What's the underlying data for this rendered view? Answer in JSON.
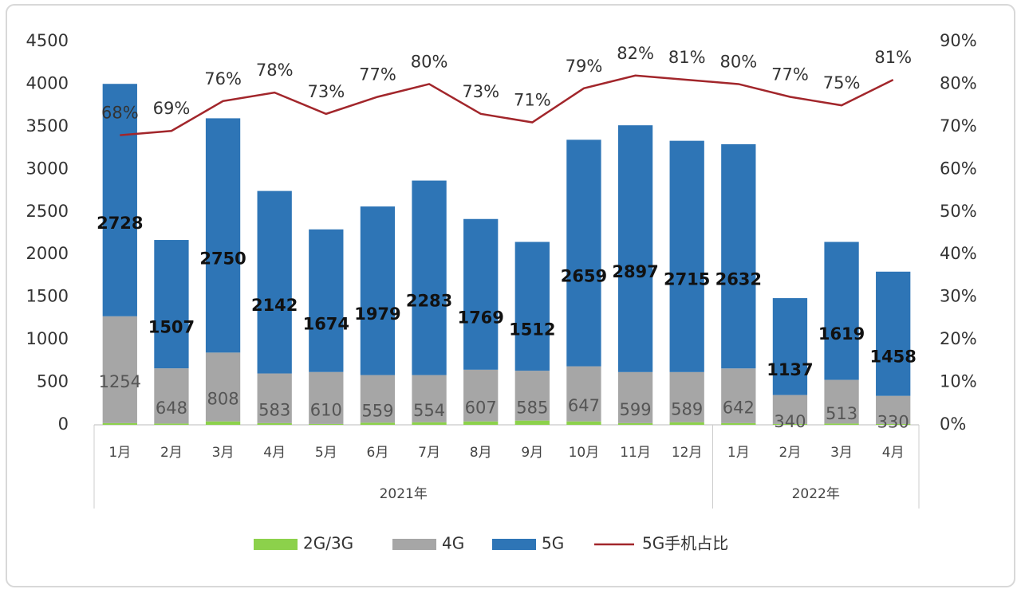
{
  "chart_data": {
    "type": "bar",
    "groups": [
      {
        "name": "2021年",
        "categories": [
          "1月",
          "2月",
          "3月",
          "4月",
          "5月",
          "6月",
          "7月",
          "8月",
          "9月",
          "10月",
          "11月",
          "12月"
        ]
      },
      {
        "name": "2022年",
        "categories": [
          "1月",
          "2月",
          "3月",
          "4月"
        ]
      }
    ],
    "stacked": true,
    "series": [
      {
        "name": "2G/3G",
        "color": "#8cd14b",
        "values": [
          20,
          15,
          40,
          20,
          10,
          25,
          30,
          40,
          50,
          40,
          20,
          30,
          20,
          10,
          15,
          10
        ]
      },
      {
        "name": "4G",
        "color": "#a6a6a6",
        "values": [
          1254,
          648,
          808,
          583,
          610,
          559,
          554,
          607,
          585,
          647,
          599,
          589,
          642,
          340,
          513,
          330
        ]
      },
      {
        "name": "5G",
        "color": "#2e75b6",
        "values": [
          2728,
          1507,
          2750,
          2142,
          1674,
          1979,
          2283,
          1769,
          1512,
          2659,
          2897,
          2715,
          2632,
          1137,
          1619,
          1458
        ]
      },
      {
        "name": "5G手机占比",
        "type": "line",
        "axis": "y2",
        "color": "#a2262b",
        "values": [
          68,
          69,
          76,
          78,
          73,
          77,
          80,
          73,
          71,
          79,
          82,
          81,
          80,
          77,
          75,
          81
        ],
        "value_labels": [
          "68%",
          "69%",
          "76%",
          "78%",
          "73%",
          "77%",
          "80%",
          "73%",
          "71%",
          "79%",
          "82%",
          "81%",
          "80%",
          "77%",
          "75%",
          "81%"
        ]
      }
    ],
    "ylim": [
      0,
      4500
    ],
    "yticks": [
      0,
      500,
      1000,
      1500,
      2000,
      2500,
      3000,
      3500,
      4000,
      4500
    ],
    "y2lim": [
      0,
      90
    ],
    "y2ticks": [
      {
        "value": 0,
        "label": "0%"
      },
      {
        "value": 10,
        "label": "10%"
      },
      {
        "value": 20,
        "label": "20%"
      },
      {
        "value": 30,
        "label": "30%"
      },
      {
        "value": 40,
        "label": "40%"
      },
      {
        "value": 50,
        "label": "50%"
      },
      {
        "value": 60,
        "label": "60%"
      },
      {
        "value": 70,
        "label": "70%"
      },
      {
        "value": 80,
        "label": "80%"
      },
      {
        "value": 90,
        "label": "90%"
      }
    ]
  }
}
